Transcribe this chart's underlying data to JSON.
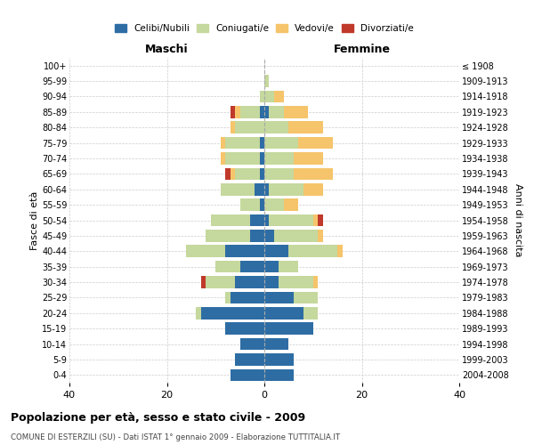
{
  "age_groups": [
    "0-4",
    "5-9",
    "10-14",
    "15-19",
    "20-24",
    "25-29",
    "30-34",
    "35-39",
    "40-44",
    "45-49",
    "50-54",
    "55-59",
    "60-64",
    "65-69",
    "70-74",
    "75-79",
    "80-84",
    "85-89",
    "90-94",
    "95-99",
    "100+"
  ],
  "birth_years": [
    "2004-2008",
    "1999-2003",
    "1994-1998",
    "1989-1993",
    "1984-1988",
    "1979-1983",
    "1974-1978",
    "1969-1973",
    "1964-1968",
    "1959-1963",
    "1954-1958",
    "1949-1953",
    "1944-1948",
    "1939-1943",
    "1934-1938",
    "1929-1933",
    "1924-1928",
    "1919-1923",
    "1914-1918",
    "1909-1913",
    "≤ 1908"
  ],
  "male": {
    "celibi": [
      7,
      6,
      5,
      8,
      13,
      7,
      6,
      5,
      8,
      3,
      3,
      1,
      2,
      1,
      1,
      1,
      0,
      1,
      0,
      0,
      0
    ],
    "coniugati": [
      0,
      0,
      0,
      0,
      1,
      1,
      6,
      5,
      8,
      9,
      8,
      4,
      7,
      5,
      7,
      7,
      6,
      4,
      1,
      0,
      0
    ],
    "vedovi": [
      0,
      0,
      0,
      0,
      0,
      0,
      0,
      0,
      0,
      0,
      0,
      0,
      0,
      1,
      1,
      1,
      1,
      1,
      0,
      0,
      0
    ],
    "divorziati": [
      0,
      0,
      0,
      0,
      0,
      0,
      1,
      0,
      0,
      0,
      0,
      0,
      0,
      1,
      0,
      0,
      0,
      1,
      0,
      0,
      0
    ]
  },
  "female": {
    "nubili": [
      6,
      6,
      5,
      10,
      8,
      6,
      3,
      3,
      5,
      2,
      1,
      0,
      1,
      0,
      0,
      0,
      0,
      1,
      0,
      0,
      0
    ],
    "coniugate": [
      0,
      0,
      0,
      0,
      3,
      5,
      7,
      4,
      10,
      9,
      9,
      4,
      7,
      6,
      6,
      7,
      5,
      3,
      2,
      1,
      0
    ],
    "vedove": [
      0,
      0,
      0,
      0,
      0,
      0,
      1,
      0,
      1,
      1,
      1,
      3,
      4,
      8,
      6,
      7,
      7,
      5,
      2,
      0,
      0
    ],
    "divorziate": [
      0,
      0,
      0,
      0,
      0,
      0,
      0,
      0,
      0,
      0,
      1,
      0,
      0,
      0,
      0,
      0,
      0,
      0,
      0,
      0,
      0
    ]
  },
  "colors": {
    "celibi": "#2E6DA4",
    "coniugati": "#C5D89D",
    "vedovi": "#F5C46B",
    "divorziati": "#C0392B"
  },
  "xlim": 40,
  "title": "Popolazione per età, sesso e stato civile - 2009",
  "subtitle": "COMUNE DI ESTERZILI (SU) - Dati ISTAT 1° gennaio 2009 - Elaborazione TUTTITALIA.IT",
  "ylabel_left": "Fasce di età",
  "ylabel_right": "Anni di nascita",
  "xlabel_left": "Maschi",
  "xlabel_right": "Femmine",
  "bg_color": "#FFFFFF",
  "grid_color": "#CCCCCC"
}
